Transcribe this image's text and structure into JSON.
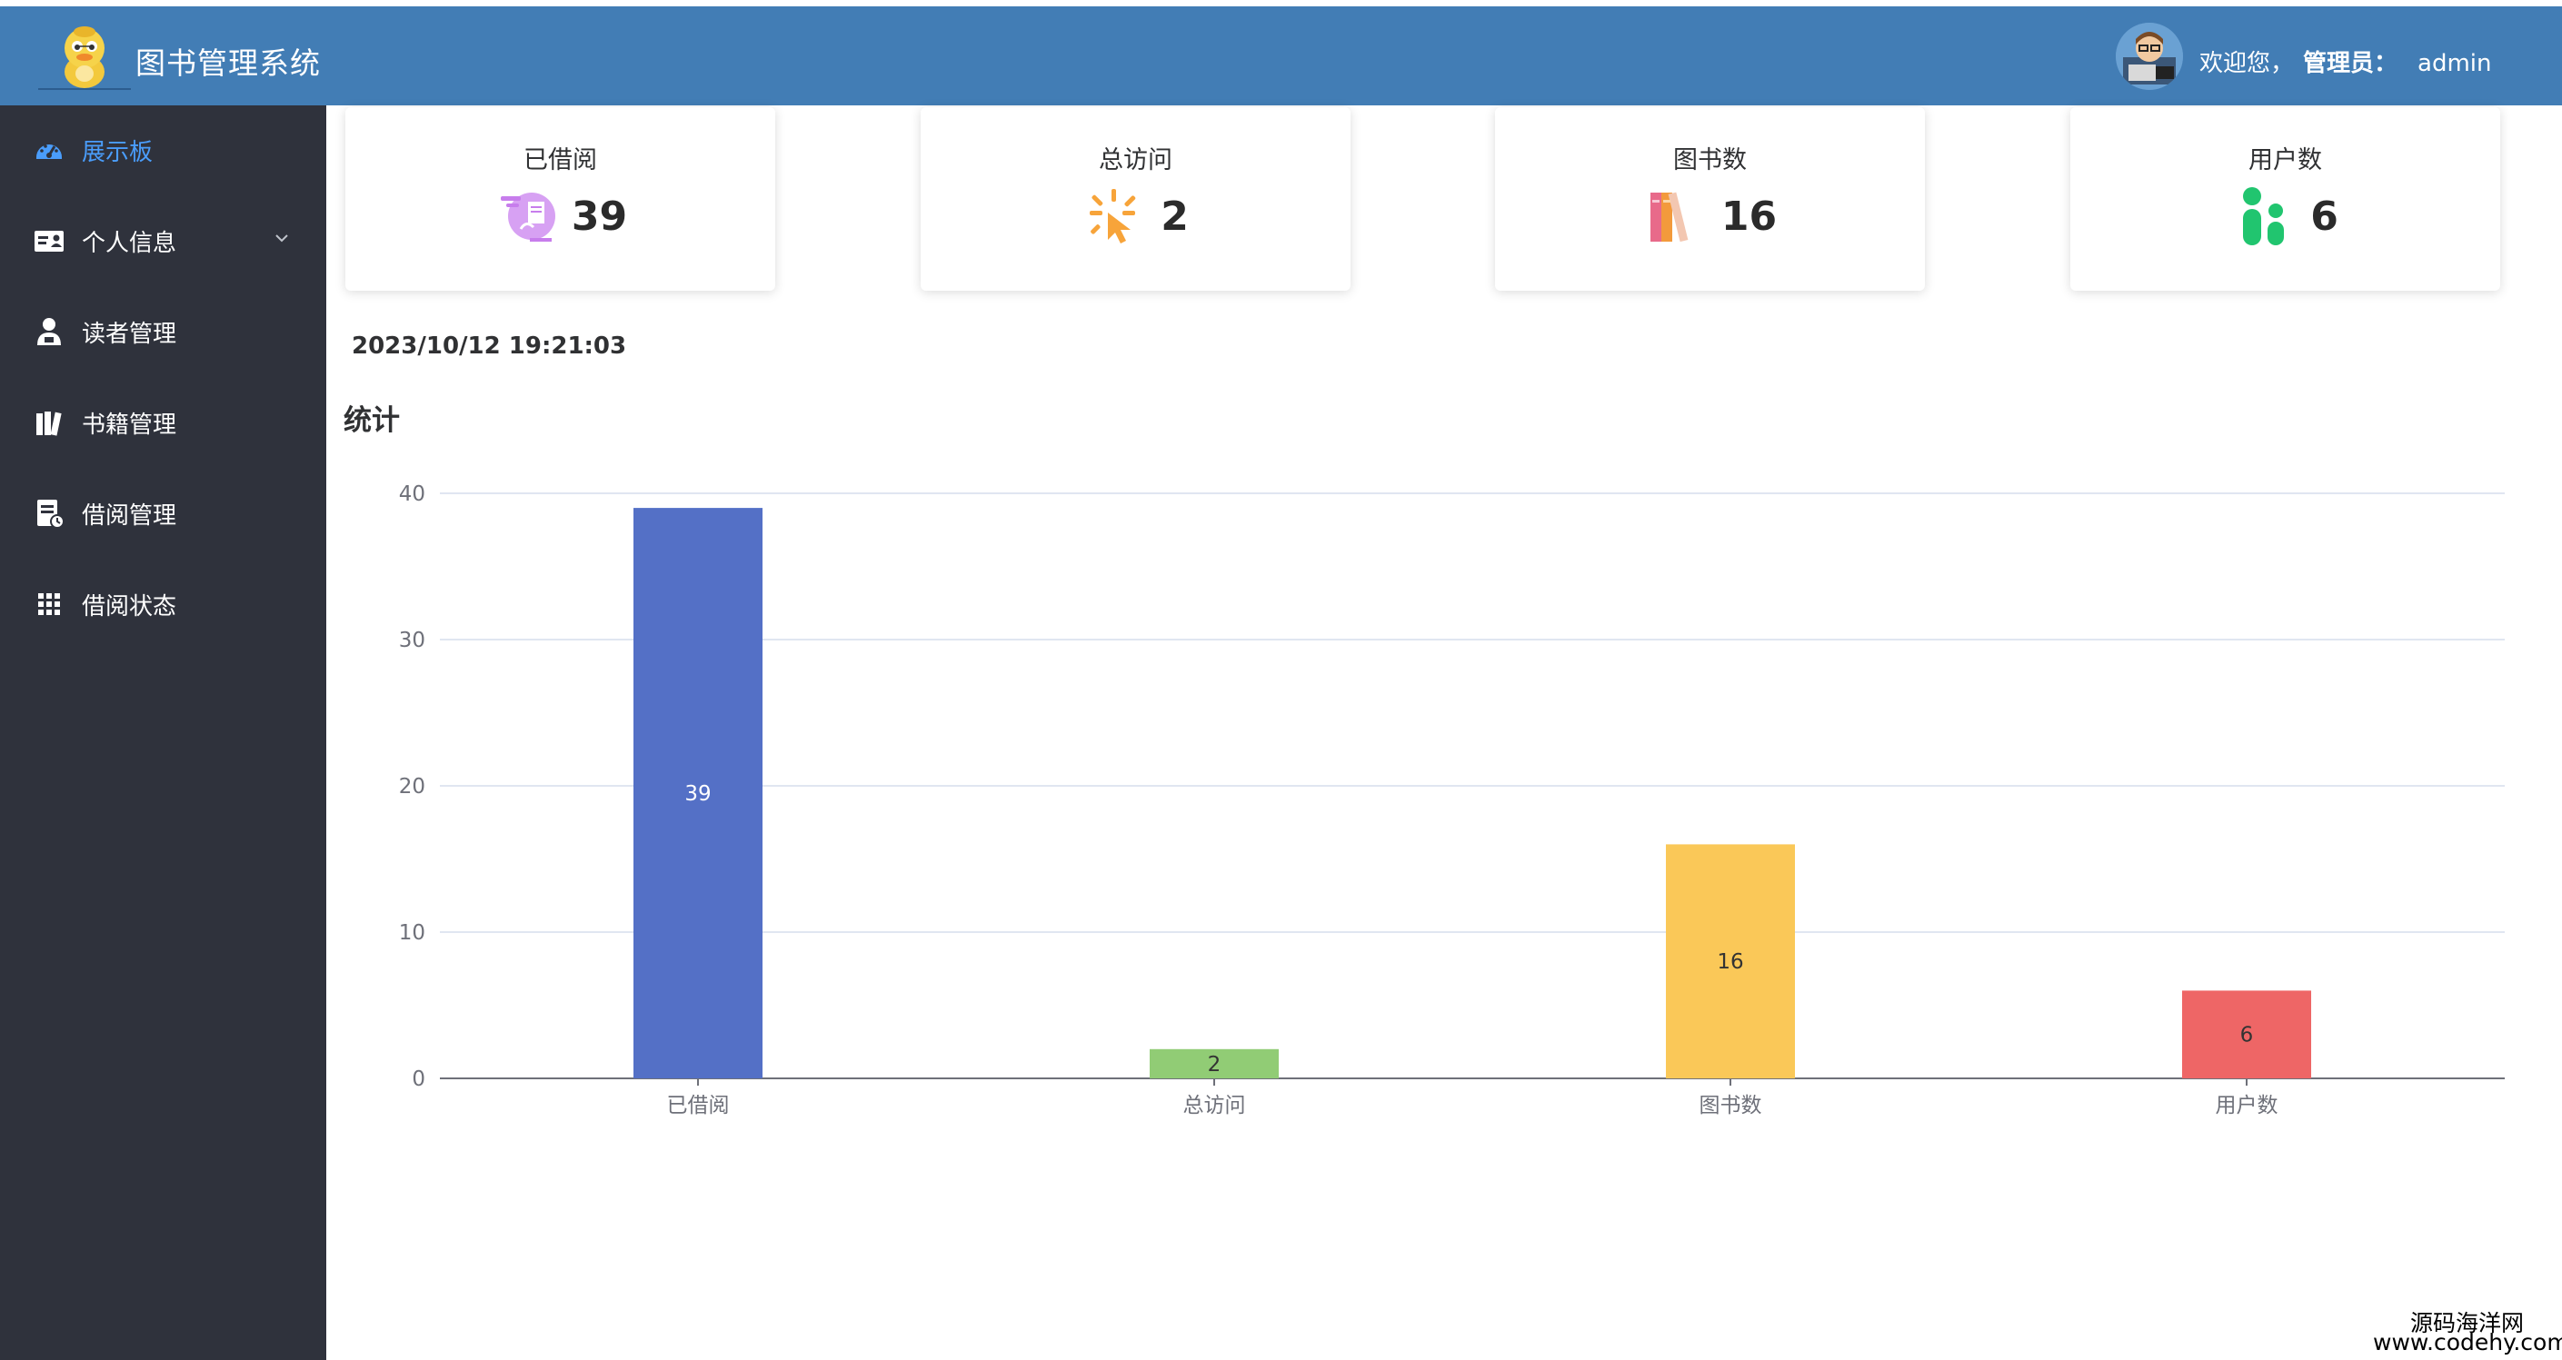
{
  "header": {
    "app_title": "图书管理系统",
    "welcome_text": "欢迎您，",
    "role_label": "管理员：",
    "username": "admin"
  },
  "sidebar": {
    "items": [
      {
        "label": "展示板",
        "icon": "dashboard-icon",
        "active": true
      },
      {
        "label": "个人信息",
        "icon": "id-card-icon",
        "has_submenu": true
      },
      {
        "label": "读者管理",
        "icon": "user-icon"
      },
      {
        "label": "书籍管理",
        "icon": "books-icon"
      },
      {
        "label": "借阅管理",
        "icon": "borrow-record-icon"
      },
      {
        "label": "借阅状态",
        "icon": "grid-icon"
      }
    ]
  },
  "stats": [
    {
      "label": "已借阅",
      "value": "39",
      "icon": "borrowed-icon",
      "color": "#c77dec"
    },
    {
      "label": "总访问",
      "value": "2",
      "icon": "click-icon",
      "color": "#f7a43a"
    },
    {
      "label": "图书数",
      "value": "16",
      "icon": "books-color-icon",
      "color": "#e86a8a"
    },
    {
      "label": "用户数",
      "value": "6",
      "icon": "users-icon",
      "color": "#21c56f"
    }
  ],
  "datetime": "2023/10/12 19:21:03",
  "section_title": "统计",
  "chart_data": {
    "type": "bar",
    "categories": [
      "已借阅",
      "总访问",
      "图书数",
      "用户数"
    ],
    "values": [
      39,
      2,
      16,
      6
    ],
    "colors": [
      "#5470c6",
      "#91cc75",
      "#fac858",
      "#ee6666"
    ],
    "yticks": [
      0,
      10,
      20,
      30,
      40
    ],
    "ylim": [
      0,
      40
    ],
    "grid": true,
    "data_labels": true
  },
  "watermark": {
    "line1": "源码海洋网",
    "line2": "www.codehy.com"
  }
}
